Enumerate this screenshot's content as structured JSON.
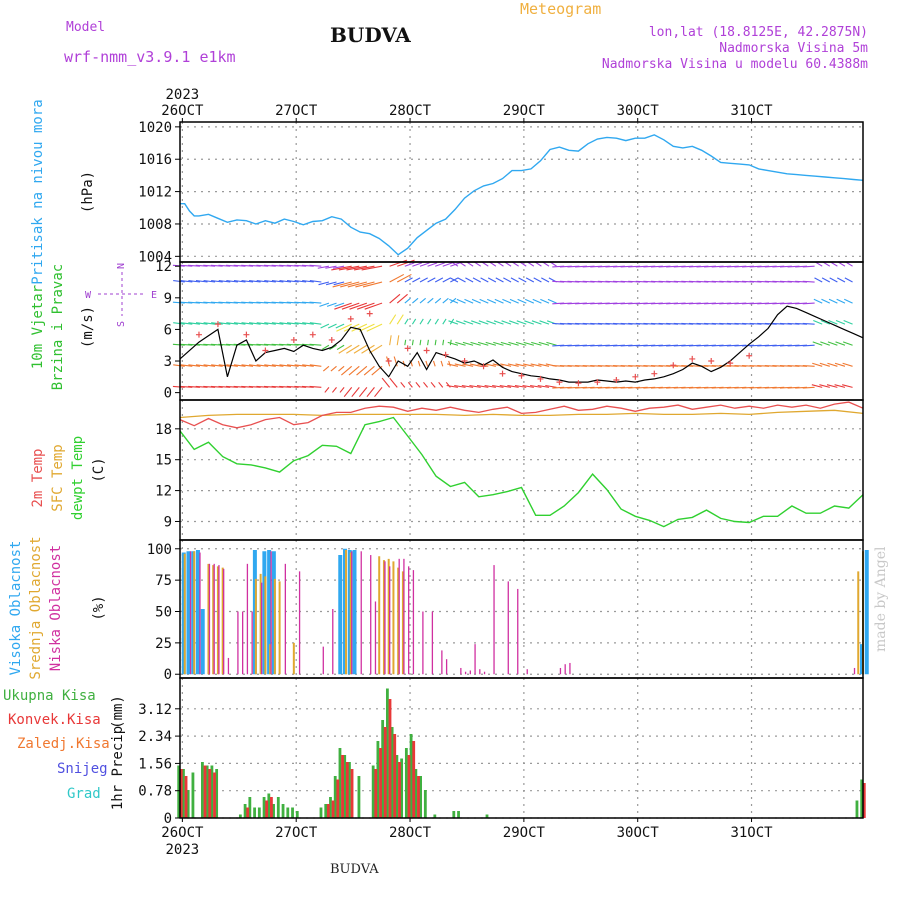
{
  "header": {
    "model_label": "Model",
    "model_name": "wrf-nmm_v3.9.1 e1km",
    "station": "BUDVA",
    "meteogram": "Meteogram",
    "lonlat": "lon,lat (18.8125E, 42.2875N)",
    "elevation": "Nadmorska Visina 5m",
    "model_elevation": "Nadmorska Visina u modelu 60.4388m",
    "year_top": "2023",
    "year_bottom": "2023",
    "footer": "BUDVA",
    "watermark": "made by Angel"
  },
  "colors": {
    "pressure": "#30a8f0",
    "temp2m": "#e85050",
    "sfc_temp": "#e0a830",
    "dewpt": "#30d030",
    "cloud_high": "#30a8f0",
    "cloud_mid": "#e0a830",
    "cloud_low": "#d030a0",
    "precip_total": "#40b040",
    "precip_conv": "#e83838",
    "precip_frozen": "#f07830",
    "snow": "#5050e0",
    "graupel": "#30c8c8",
    "wind_speed": "#000000",
    "wind_gust": "#e85050"
  },
  "chart_data": [
    {
      "type": "line",
      "name": "pressure",
      "ylabel_1": "Pritisak na nivou mora",
      "ylabel_2": "(hPa)",
      "x_ticks": [
        "26OCT",
        "27OCT",
        "28OCT",
        "29OCT",
        "30OCT",
        "31OCT"
      ],
      "xlim_hours": [
        0,
        144
      ],
      "y_ticks": [
        1004,
        1008,
        1012,
        1016,
        1020
      ],
      "ylim": [
        1003.3,
        1020.6
      ],
      "series": [
        {
          "values_t": [
            0,
            1,
            2,
            3,
            4,
            6,
            8,
            10,
            12,
            14,
            16,
            18,
            20,
            22,
            24,
            26,
            28,
            30,
            32,
            34,
            36,
            38,
            40,
            42,
            44,
            46,
            48,
            50,
            52,
            54,
            56,
            58,
            60,
            62,
            64,
            66,
            68,
            70,
            72,
            74,
            76,
            78,
            80,
            82,
            84,
            86,
            88,
            90,
            92,
            94,
            96,
            98,
            100,
            102,
            104,
            106,
            108,
            110,
            112,
            114,
            116,
            118,
            120,
            122,
            124,
            126,
            128,
            130,
            132,
            134,
            136,
            138,
            140,
            142,
            144
          ],
          "values": [
            1010.5,
            1010.5,
            1009.6,
            1009.0,
            1009.0,
            1009.2,
            1008.7,
            1008.2,
            1008.5,
            1008.4,
            1008.0,
            1008.4,
            1008.1,
            1008.6,
            1008.3,
            1007.9,
            1008.3,
            1008.4,
            1008.9,
            1008.6,
            1007.6,
            1007.0,
            1006.8,
            1006.2,
            1005.3,
            1004.2,
            1005.0,
            1006.3,
            1007.2,
            1008.1,
            1008.6,
            1009.8,
            1011.2,
            1012.1,
            1012.7,
            1013.0,
            1013.6,
            1014.6,
            1014.6,
            1014.8,
            1015.8,
            1017.2,
            1017.5,
            1017.1,
            1017.0,
            1017.9,
            1018.5,
            1018.7,
            1018.6,
            1018.3,
            1018.6,
            1018.6,
            1019.0,
            1018.4,
            1017.6,
            1017.4,
            1017.6,
            1017.1,
            1016.4,
            1015.6,
            1015.5,
            1015.4,
            1015.3,
            1014.8,
            1014.6,
            1014.4,
            1014.2,
            1014.1,
            1014.0,
            1013.9,
            1013.8,
            1013.7,
            1013.6,
            1013.5,
            1013.4
          ]
        }
      ]
    },
    {
      "type": "scatter",
      "name": "wind",
      "ylabel_1": "10m Vjetar",
      "ylabel_2": "Brzina i Pravac",
      "ylabel_3": "(m/s)",
      "compass": {
        "n": "N",
        "s": "S",
        "e": "E",
        "w": "W"
      },
      "y_ticks": [
        0,
        3,
        6,
        9,
        12
      ],
      "ylim": [
        -0.7,
        12.4
      ],
      "speed_t": [
        0,
        4,
        8,
        10,
        12,
        14,
        16,
        18,
        20,
        22,
        24,
        26,
        28,
        30,
        32,
        34,
        36,
        38,
        40,
        42,
        44,
        46,
        48,
        50,
        52,
        54,
        56,
        58,
        60,
        62,
        64,
        66,
        68,
        70,
        72,
        74,
        76,
        78,
        80,
        82,
        84,
        86,
        88,
        90,
        92,
        94,
        96,
        98,
        100,
        102,
        104,
        106,
        108,
        110,
        112,
        114,
        116,
        118,
        120,
        122,
        124,
        126,
        128,
        130,
        132,
        134,
        136,
        138,
        140,
        142,
        144
      ],
      "speed": [
        3.2,
        4.8,
        6.0,
        1.5,
        4.5,
        5.0,
        3.0,
        3.8,
        4.0,
        4.2,
        3.9,
        4.5,
        4.2,
        4.0,
        4.3,
        5.0,
        6.2,
        6.0,
        4.0,
        2.5,
        1.5,
        3.0,
        2.5,
        3.8,
        2.2,
        3.8,
        3.5,
        3.2,
        2.8,
        3.0,
        2.6,
        3.1,
        2.4,
        2.0,
        1.8,
        1.6,
        1.5,
        1.3,
        1.2,
        1.0,
        1.0,
        1.0,
        1.2,
        1.1,
        1.0,
        1.1,
        1.0,
        1.2,
        1.3,
        1.5,
        1.8,
        2.2,
        2.8,
        2.5,
        2.0,
        2.4,
        3.0,
        3.8,
        4.6,
        5.3,
        6.1,
        7.4,
        8.2,
        8.0,
        7.6,
        7.2,
        6.8,
        6.4,
        6.0,
        5.6,
        5.2
      ],
      "gust_t": [
        4,
        8,
        14,
        18,
        24,
        28,
        32,
        36,
        40,
        44,
        48,
        52,
        56,
        60,
        64,
        68,
        72,
        76,
        80,
        84,
        88,
        92,
        96,
        100,
        104,
        108,
        112,
        116,
        120
      ],
      "gust": [
        5.5,
        6.5,
        5.5,
        4.0,
        5.0,
        5.5,
        5.0,
        7.0,
        7.5,
        3.0,
        4.2,
        4.0,
        3.6,
        3.0,
        2.5,
        1.8,
        1.6,
        1.3,
        1.0,
        0.9,
        1.0,
        1.2,
        1.5,
        1.8,
        2.6,
        3.2,
        3.0,
        2.8,
        3.5
      ]
    },
    {
      "type": "line",
      "name": "temperature",
      "ylabel_1": "2m Temp",
      "ylabel_2": "SFC Temp",
      "ylabel_3": "dewpt Temp",
      "ylabel_4": "(C)",
      "y_ticks": [
        9,
        12,
        15,
        18
      ],
      "ylim": [
        7.2,
        20.8
      ],
      "series": [
        {
          "name": "2m Temp",
          "t": [
            0,
            3,
            6,
            9,
            12,
            15,
            18,
            21,
            24,
            27,
            30,
            33,
            36,
            39,
            42,
            45,
            48,
            51,
            54,
            57,
            60,
            63,
            66,
            69,
            72,
            75,
            78,
            81,
            84,
            87,
            90,
            93,
            96,
            99,
            102,
            105,
            108,
            111,
            114,
            117,
            120,
            123,
            126,
            129,
            132,
            135,
            138,
            141,
            144
          ],
          "values": [
            18.9,
            18.3,
            19.0,
            18.4,
            18.1,
            18.4,
            18.9,
            19.1,
            18.4,
            18.6,
            19.3,
            19.6,
            19.6,
            20.0,
            20.2,
            20.1,
            19.7,
            20.0,
            19.8,
            20.1,
            19.8,
            19.6,
            19.9,
            20.1,
            19.5,
            19.6,
            19.9,
            20.2,
            19.8,
            19.9,
            20.2,
            20.0,
            19.7,
            20.0,
            20.1,
            20.3,
            19.9,
            20.1,
            20.3,
            20.0,
            20.2,
            20.0,
            20.3,
            20.1,
            20.3,
            20.0,
            20.4,
            20.6,
            20.0
          ]
        },
        {
          "name": "SFC Temp",
          "t": [
            0,
            6,
            12,
            18,
            24,
            30,
            36,
            42,
            48,
            54,
            60,
            66,
            72,
            78,
            84,
            90,
            96,
            102,
            108,
            114,
            120,
            126,
            132,
            138,
            144
          ],
          "values": [
            19.1,
            19.3,
            19.4,
            19.4,
            19.4,
            19.3,
            19.4,
            19.4,
            19.4,
            19.4,
            19.3,
            19.4,
            19.3,
            19.3,
            19.4,
            19.4,
            19.5,
            19.4,
            19.4,
            19.5,
            19.4,
            19.6,
            19.7,
            19.8,
            19.5
          ]
        },
        {
          "name": "dewpt Temp",
          "t": [
            0,
            3,
            6,
            9,
            12,
            15,
            18,
            21,
            24,
            27,
            30,
            33,
            36,
            39,
            42,
            45,
            48,
            51,
            54,
            57,
            60,
            63,
            66,
            69,
            72,
            75,
            78,
            81,
            84,
            87,
            90,
            93,
            96,
            99,
            102,
            105,
            108,
            111,
            114,
            117,
            120,
            123,
            126,
            129,
            132,
            135,
            138,
            141,
            144
          ],
          "values": [
            17.8,
            16.0,
            16.7,
            15.3,
            14.6,
            14.5,
            14.2,
            13.8,
            14.9,
            15.4,
            16.4,
            16.3,
            15.6,
            18.4,
            18.7,
            19.1,
            17.3,
            15.5,
            13.4,
            12.4,
            12.8,
            11.4,
            11.6,
            11.9,
            12.3,
            9.6,
            9.6,
            10.5,
            11.8,
            13.6,
            12.1,
            10.2,
            9.5,
            9.1,
            8.5,
            9.2,
            9.4,
            10.1,
            9.3,
            9.0,
            8.9,
            9.5,
            9.5,
            10.5,
            9.8,
            9.8,
            10.5,
            10.3,
            11.6
          ]
        }
      ]
    },
    {
      "type": "bar",
      "name": "cloud_cover",
      "ylabel_1": "Visoka Oblacnost",
      "ylabel_2": "Srednja Oblacnost",
      "ylabel_3": "Niska Oblacnost",
      "ylabel_4": "(%)",
      "y_ticks": [
        0,
        25,
        50,
        75,
        100
      ],
      "ylim": [
        -3,
        107
      ],
      "series": [
        {
          "name": "Visoka Oblacnost",
          "t": [
            1,
            2,
            3,
            4,
            5,
            16,
            18,
            19,
            20,
            34,
            35,
            36,
            37,
            144,
            145
          ],
          "values": [
            97,
            98,
            98,
            99,
            52,
            99,
            98,
            99,
            98,
            95,
            100,
            99,
            99,
            24,
            99
          ]
        },
        {
          "name": "Srednja Oblacnost",
          "t": [
            1,
            3,
            6,
            7,
            8,
            9,
            16,
            17,
            18,
            19,
            20,
            21,
            24,
            35,
            36,
            42,
            43,
            44,
            45,
            46,
            47,
            143,
            144
          ],
          "values": [
            96,
            98,
            88,
            87,
            86,
            85,
            76,
            80,
            78,
            24,
            76,
            74,
            25,
            99,
            97,
            94,
            91,
            92,
            90,
            85,
            82,
            82,
            98
          ]
        },
        {
          "name": "Niska Oblacnost",
          "t": [
            2,
            4,
            6,
            7,
            8,
            9,
            10,
            12,
            13,
            14,
            15,
            17,
            19,
            22,
            25,
            30,
            32,
            36,
            38,
            40,
            41,
            43,
            44,
            46,
            47,
            48,
            49,
            51,
            53,
            55,
            56,
            59,
            60,
            61,
            62,
            63,
            64,
            66,
            69,
            71,
            73,
            80,
            81,
            82,
            142
          ],
          "values": [
            98,
            97,
            88,
            88,
            87,
            84,
            13,
            50,
            50,
            88,
            50,
            73,
            98,
            88,
            82,
            22,
            52,
            98,
            98,
            95,
            58,
            90,
            86,
            92,
            92,
            86,
            83,
            50,
            50,
            19,
            12,
            5,
            2,
            3,
            24,
            4,
            2,
            87,
            74,
            68,
            4,
            5,
            8,
            9,
            5
          ]
        }
      ]
    },
    {
      "type": "bar",
      "name": "precipitation",
      "ylabel_1": "1hr Precip",
      "ylabel_2": "(mm)",
      "legend": [
        "Ukupna Kisa",
        "Konvek.Kisa",
        "Zaledj.Kisa",
        "Snijeg",
        "Grad"
      ],
      "y_ticks": [
        "0",
        "0.78",
        "1.56",
        "2.34",
        "3.12"
      ],
      "ylim": [
        0,
        4.0
      ],
      "series": [
        {
          "name": "Ukupna Kisa",
          "t": [
            0,
            1,
            2,
            3,
            5,
            6,
            7,
            8,
            13,
            14,
            15,
            16,
            17,
            18,
            19,
            20,
            21,
            22,
            23,
            24,
            25,
            30,
            31,
            32,
            33,
            34,
            35,
            36,
            38,
            41,
            42,
            43,
            44,
            45,
            46,
            47,
            48,
            49,
            50,
            51,
            52,
            54,
            58,
            59,
            65,
            143,
            144
          ],
          "values": [
            1.5,
            1.4,
            0.8,
            1.3,
            1.6,
            1.5,
            1.5,
            1.4,
            0.1,
            0.4,
            0.6,
            0.3,
            0.3,
            0.6,
            0.7,
            0.4,
            0.6,
            0.4,
            0.3,
            0.3,
            0.2,
            0.3,
            0.4,
            0.6,
            1.2,
            2.0,
            1.8,
            1.6,
            1.2,
            1.5,
            2.2,
            2.8,
            3.7,
            2.6,
            1.8,
            1.7,
            2.0,
            2.4,
            1.4,
            1.2,
            0.8,
            0.1,
            0.2,
            0.2,
            0.1,
            0.5,
            1.1
          ]
        },
        {
          "name": "Konvek.Kisa",
          "t": [
            0,
            1,
            5,
            6,
            7,
            14,
            18,
            19,
            31,
            32,
            33,
            34,
            35,
            36,
            41,
            42,
            43,
            44,
            45,
            46,
            48,
            49,
            50,
            144
          ],
          "values": [
            1.4,
            1.2,
            1.5,
            1.4,
            1.3,
            0.3,
            0.5,
            0.6,
            0.4,
            0.5,
            1.1,
            1.8,
            1.6,
            1.4,
            1.4,
            2.0,
            2.6,
            3.4,
            2.4,
            1.6,
            1.8,
            2.2,
            1.2,
            1.0
          ]
        }
      ]
    }
  ]
}
